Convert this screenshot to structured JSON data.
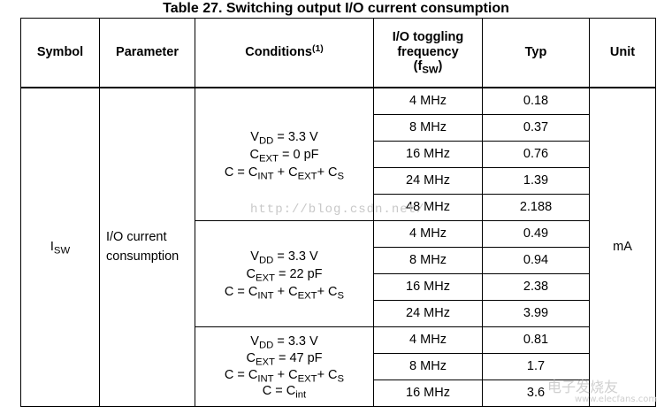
{
  "title": "Table 27. Switching output I/O current consumption",
  "headers": {
    "symbol": "Symbol",
    "parameter": "Parameter",
    "conditions": "Conditions",
    "conditions_note": "(1)",
    "freq_line1": "I/O toggling",
    "freq_line2": "frequency",
    "freq_f": "f",
    "freq_sub": "SW",
    "typ": "Typ",
    "unit": "Unit"
  },
  "symbol": {
    "main": "I",
    "sub": "SW"
  },
  "parameter": {
    "line1": "I/O current",
    "line2": "consumption"
  },
  "unit": "mA",
  "groups": [
    {
      "conditions": {
        "vdd_label": "V",
        "vdd_sub": "DD",
        "vdd_value": " = 3.3 V",
        "cext_label": "C",
        "cext_sub": "EXT",
        "cext_value": " = 0 pF",
        "c_lhs": "C = C",
        "c_int_sub": "INT",
        "c_mid1": " + C",
        "c_ext_sub": "EXT",
        "c_mid2": "+ C",
        "c_s_sub": "S"
      },
      "rows": [
        {
          "freq": "4 MHz",
          "typ": "0.18"
        },
        {
          "freq": "8 MHz",
          "typ": "0.37"
        },
        {
          "freq": "16 MHz",
          "typ": "0.76"
        },
        {
          "freq": "24 MHz",
          "typ": "1.39"
        },
        {
          "freq": "48 MHz",
          "typ": "2.188"
        }
      ]
    },
    {
      "conditions": {
        "vdd_label": "V",
        "vdd_sub": "DD",
        "vdd_value": " = 3.3 V",
        "cext_label": "C",
        "cext_sub": "EXT",
        "cext_value": " = 22 pF",
        "c_lhs": "C = C",
        "c_int_sub": "INT",
        "c_mid1": " + C",
        "c_ext_sub": "EXT",
        "c_mid2": "+ C",
        "c_s_sub": "S"
      },
      "rows": [
        {
          "freq": "4 MHz",
          "typ": "0.49"
        },
        {
          "freq": "8 MHz",
          "typ": "0.94"
        },
        {
          "freq": "16 MHz",
          "typ": "2.38"
        },
        {
          "freq": "24 MHz",
          "typ": "3.99"
        }
      ]
    },
    {
      "conditions": {
        "vdd_label": "V",
        "vdd_sub": "DD",
        "vdd_value": " = 3.3 V",
        "cext_label": "C",
        "cext_sub": "EXT",
        "cext_value": " = 47 pF",
        "c_lhs": "C = C",
        "c_int_sub": "INT",
        "c_mid1": " + C",
        "c_ext_sub": "EXT",
        "c_mid2": "+ C",
        "c_s_sub": "S",
        "c_eq_lhs": "C = C",
        "c_eq_sub": "int"
      },
      "rows": [
        {
          "freq": "4 MHz",
          "typ": "0.81"
        },
        {
          "freq": "8 MHz",
          "typ": "1.7"
        },
        {
          "freq": "16 MHz",
          "typ": "3.6"
        }
      ]
    }
  ],
  "watermark": {
    "text": "http://blog.csdn.net/",
    "logo": "电子发烧友",
    "url": "www.elecfans.com"
  }
}
